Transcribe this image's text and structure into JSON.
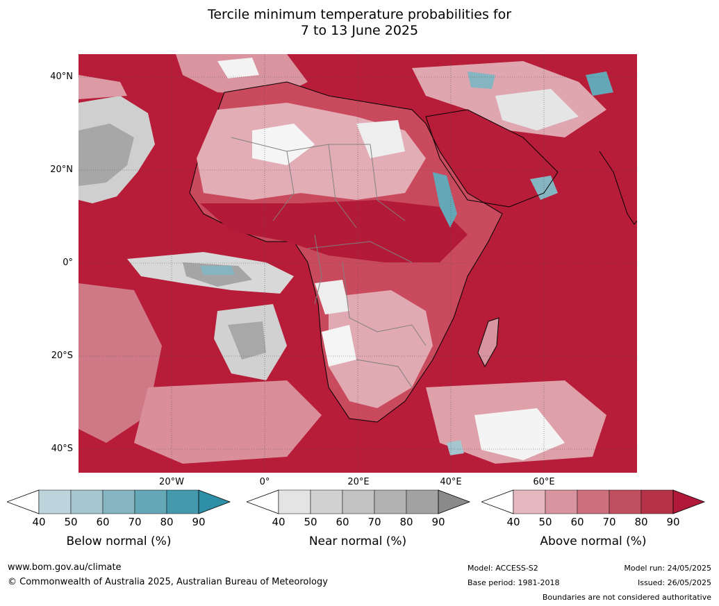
{
  "title_line1": "Tercile minimum temperature probabilities for",
  "title_line2": "7 to 13 June 2025",
  "lat_labels": [
    "40°N",
    "20°N",
    "0°",
    "20°S",
    "40°S"
  ],
  "lon_labels": [
    "20°W",
    "0°",
    "20°E",
    "40°E",
    "60°E"
  ],
  "colorbars": [
    {
      "title": "Below normal (%)",
      "ticks": [
        "40",
        "50",
        "60",
        "70",
        "80",
        "90"
      ],
      "colors": [
        "#ffffff",
        "#bcd4dc",
        "#a5c6cf",
        "#86b5c2",
        "#64a7b6",
        "#4499ad",
        "#2f8fa6"
      ]
    },
    {
      "title": "Near normal (%)",
      "ticks": [
        "40",
        "50",
        "60",
        "70",
        "80",
        "90"
      ],
      "colors": [
        "#ffffff",
        "#e4e4e4",
        "#d1d1d1",
        "#c2c2c2",
        "#b2b2b2",
        "#a2a2a2",
        "#8a8a8a"
      ]
    },
    {
      "title": "Above normal (%)",
      "ticks": [
        "40",
        "50",
        "60",
        "70",
        "80",
        "90"
      ],
      "colors": [
        "#ffffff",
        "#e5b8bf",
        "#d9959f",
        "#cc707e",
        "#c0505f",
        "#b63347",
        "#b1193a"
      ]
    }
  ],
  "footer": {
    "website": "www.bom.gov.au/climate",
    "copyright": "© Commonwealth of Australia 2025, Australian Bureau of Meteorology",
    "model": "Model: ACCESS-S2",
    "base_period": "Base period: 1981-2018",
    "model_run": "Model run: 24/05/2025",
    "issued": "Issued: 26/05/2025",
    "disclaimer": "Boundaries are not considered authoritative"
  }
}
